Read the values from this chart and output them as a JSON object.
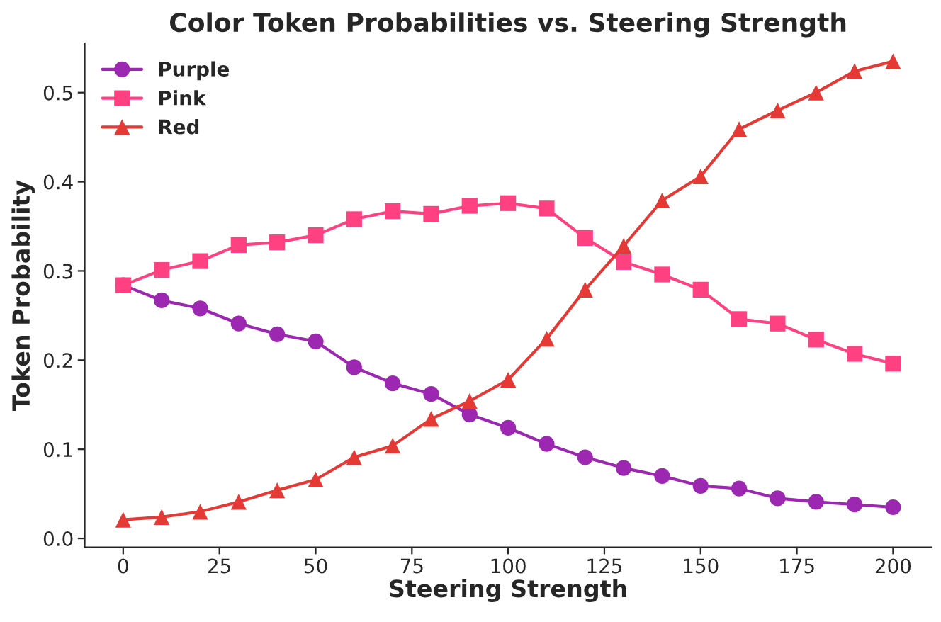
{
  "chart_data": {
    "type": "line",
    "title": "Color Token Probabilities vs. Steering Strength",
    "xlabel": "Steering Strength",
    "ylabel": "Token Probability",
    "x": [
      0,
      10,
      20,
      30,
      40,
      50,
      60,
      70,
      80,
      90,
      100,
      110,
      120,
      130,
      140,
      150,
      160,
      170,
      180,
      190,
      200
    ],
    "series": [
      {
        "name": "Purple",
        "color": "#9c27b0",
        "marker": "circle",
        "values": [
          0.284,
          0.267,
          0.258,
          0.241,
          0.229,
          0.221,
          0.192,
          0.174,
          0.162,
          0.139,
          0.124,
          0.106,
          0.091,
          0.079,
          0.07,
          0.059,
          0.056,
          0.045,
          0.041,
          0.038,
          0.035
        ]
      },
      {
        "name": "Pink",
        "color": "#ff4081",
        "marker": "square",
        "values": [
          0.284,
          0.301,
          0.311,
          0.329,
          0.332,
          0.34,
          0.358,
          0.367,
          0.364,
          0.373,
          0.376,
          0.37,
          0.337,
          0.31,
          0.296,
          0.279,
          0.246,
          0.241,
          0.223,
          0.207,
          0.196
        ]
      },
      {
        "name": "Red",
        "color": "#e53935",
        "marker": "triangle",
        "values": [
          0.021,
          0.024,
          0.03,
          0.041,
          0.054,
          0.066,
          0.091,
          0.104,
          0.134,
          0.154,
          0.178,
          0.224,
          0.279,
          0.328,
          0.379,
          0.406,
          0.459,
          0.48,
          0.5,
          0.524,
          0.535
        ]
      }
    ],
    "xlim": [
      -10,
      210
    ],
    "xticks": [
      0,
      25,
      50,
      75,
      100,
      125,
      150,
      175,
      200
    ],
    "ylim": [
      -0.01,
      0.555
    ],
    "yticks": [
      {
        "value": 0,
        "label": "0.0"
      },
      0.1,
      0.2,
      0.3,
      0.4,
      0.5
    ],
    "legend": "top left",
    "grid": false,
    "line_style": "solid"
  }
}
